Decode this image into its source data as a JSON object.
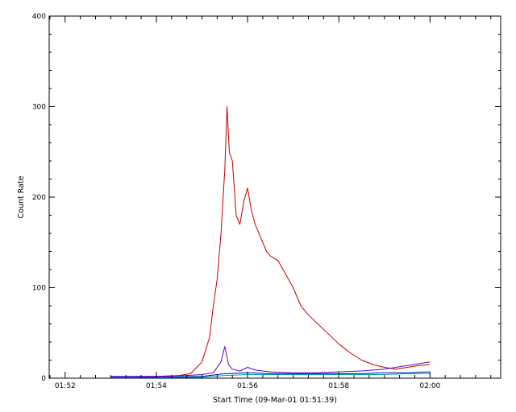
{
  "chart_data": {
    "type": "line",
    "title": "",
    "xlabel": "Start Time (09-Mar-01 01:51:39)",
    "ylabel": "Count Rate",
    "x_unit": "minutes",
    "xlim": [
      "01:51:39",
      "02:01:33"
    ],
    "ylim": [
      0,
      400
    ],
    "x_ticks": [
      {
        "t": "01:52:00",
        "label": "01:52"
      },
      {
        "t": "01:54:00",
        "label": "01:54"
      },
      {
        "t": "01:56:00",
        "label": "01:56"
      },
      {
        "t": "01:58:00",
        "label": "01:58"
      },
      {
        "t": "02:00:00",
        "label": "02:00"
      }
    ],
    "y_ticks": [
      0,
      100,
      200,
      300,
      400
    ],
    "y_tick_labels": [
      "0",
      "100",
      "200",
      "300",
      "400"
    ],
    "grid": false,
    "legend": "none",
    "series": [
      {
        "color": "#c00000",
        "x": [
          "01:53:00",
          "01:53:30",
          "01:54:00",
          "01:54:30",
          "01:54:45",
          "01:55:00",
          "01:55:10",
          "01:55:15",
          "01:55:20",
          "01:55:25",
          "01:55:30",
          "01:55:33",
          "01:55:36",
          "01:55:40",
          "01:55:45",
          "01:55:50",
          "01:55:55",
          "01:56:00",
          "01:56:05",
          "01:56:10",
          "01:56:15",
          "01:56:20",
          "01:56:25",
          "01:56:30",
          "01:56:40",
          "01:56:50",
          "01:57:00",
          "01:57:10",
          "01:57:20",
          "01:57:30",
          "01:57:45",
          "01:58:00",
          "01:58:15",
          "01:58:30",
          "01:58:45",
          "01:59:00",
          "01:59:15",
          "01:59:30",
          "01:59:45",
          "02:00:00"
        ],
        "y": [
          1,
          1,
          2,
          3,
          5,
          18,
          45,
          80,
          110,
          160,
          230,
          300,
          250,
          240,
          180,
          170,
          195,
          210,
          185,
          170,
          160,
          150,
          140,
          135,
          130,
          115,
          100,
          80,
          70,
          62,
          50,
          38,
          28,
          20,
          15,
          12,
          10,
          12,
          14,
          15
        ]
      },
      {
        "color": "#6600cc",
        "x": [
          "01:53:00",
          "01:54:00",
          "01:54:40",
          "01:55:00",
          "01:55:15",
          "01:55:25",
          "01:55:30",
          "01:55:35",
          "01:55:40",
          "01:55:50",
          "01:56:00",
          "01:56:10",
          "01:56:20",
          "01:56:30",
          "01:57:00",
          "01:57:30",
          "01:58:00",
          "01:58:30",
          "01:59:00",
          "01:59:30",
          "02:00:00"
        ],
        "y": [
          2,
          2,
          3,
          4,
          6,
          18,
          35,
          15,
          10,
          8,
          12,
          9,
          8,
          7,
          6,
          6,
          7,
          8,
          10,
          14,
          18
        ]
      },
      {
        "color": "#00a0a0",
        "x": [
          "01:53:00",
          "01:54:00",
          "01:55:00",
          "01:55:30",
          "01:56:00",
          "01:56:30",
          "01:57:00",
          "01:57:30",
          "01:58:00",
          "01:58:30",
          "01:59:00",
          "01:59:30",
          "02:00:00"
        ],
        "y": [
          0.5,
          0.5,
          1,
          3,
          4,
          4,
          4,
          4,
          4,
          4,
          4,
          5,
          5
        ]
      },
      {
        "color": "#0000cc",
        "x": [
          "01:53:00",
          "01:54:00",
          "01:55:00",
          "01:55:30",
          "01:56:00",
          "01:56:30",
          "01:57:00",
          "01:57:30",
          "01:58:00",
          "01:58:30",
          "01:59:00",
          "01:59:30",
          "02:00:00"
        ],
        "y": [
          1,
          1,
          2,
          5,
          6,
          5,
          5,
          5,
          5,
          5,
          6,
          6,
          7
        ]
      }
    ]
  }
}
